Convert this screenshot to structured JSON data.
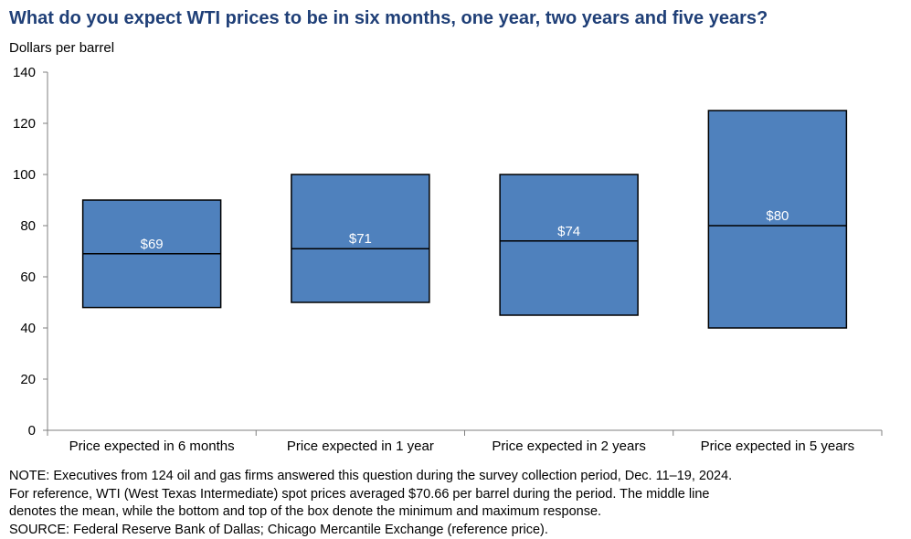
{
  "title": "What do you expect WTI prices to be in six months, one year, two years and five years?",
  "unit_label": "Dollars  per barrel",
  "notes": [
    "NOTE:  Executives  from 124 oil and gas firms  answered  this question  during the survey  collection  period, Dec. 11–19, 2024.",
    "For reference, WTI (West Texas  Intermediate)  spot prices averaged  $70.66 per barrel during the period. The middle line",
    "denotes the mean,  while the bottom  and top of the box denote  the minimum  and maximum  response.",
    "SOURCE:  Federal Reserve  Bank of Dallas;  Chicago Mercantile  Exchange  (reference price)."
  ],
  "colors": {
    "box_fill": "#4f81bd",
    "title": "#1f3f77",
    "outline": "#000000",
    "label": "#ffffff"
  },
  "chart_data": {
    "type": "box",
    "ylim": [
      0,
      140
    ],
    "yticks": [
      0,
      20,
      40,
      60,
      80,
      100,
      120,
      140
    ],
    "grid": false,
    "categories": [
      "Price expected in 6 months",
      "Price expected in 1 year",
      "Price expected in 2 years",
      "Price expected in 5 years"
    ],
    "series": [
      {
        "min": [
          48,
          50,
          45,
          40
        ],
        "mean": [
          69,
          71,
          74,
          80
        ],
        "max": [
          90,
          100,
          100,
          125
        ],
        "mean_labels": [
          "$69",
          "$71",
          "$74",
          "$80"
        ]
      }
    ]
  }
}
